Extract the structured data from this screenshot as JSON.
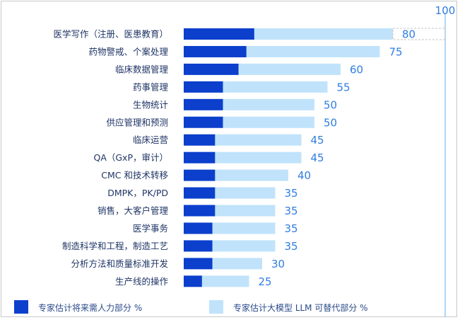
{
  "chart_data": {
    "type": "bar",
    "orientation": "horizontal",
    "stacked": true,
    "categories": [
      "医学写作（注册、医患教育）",
      "药物警戒、个案处理",
      "临床数据管理",
      "药事管理",
      "生物统计",
      "供应管理和预测",
      "临床运营",
      "QA（GxP，审计）",
      "CMC 和技术转移",
      "DMPK，PK/PD",
      "销售，大客户管理",
      "医学事务",
      "制造科学和工程，制造工艺",
      "分析方法和质量标准开发",
      "生产线的操作"
    ],
    "totals": [
      80,
      75,
      60,
      55,
      50,
      50,
      45,
      45,
      40,
      35,
      35,
      35,
      35,
      30,
      25
    ],
    "series": [
      {
        "name": "专家估计将来需人力部分 %",
        "color": "#0b3fcc",
        "values": [
          27,
          24,
          21,
          15,
          15,
          15,
          12,
          12,
          12,
          12,
          12,
          11,
          11,
          11,
          7
        ]
      },
      {
        "name": "专家估计大模型 LLM 可替代部分 %",
        "color": "#c0e3fb",
        "values": [
          53,
          51,
          39,
          40,
          35,
          35,
          33,
          33,
          28,
          23,
          23,
          24,
          24,
          19,
          18
        ]
      }
    ],
    "xlim": [
      0,
      100
    ],
    "reference_line": {
      "value": 100,
      "label": "100",
      "color": "#9cc8f0"
    },
    "legend": "bottom",
    "grid": false
  }
}
